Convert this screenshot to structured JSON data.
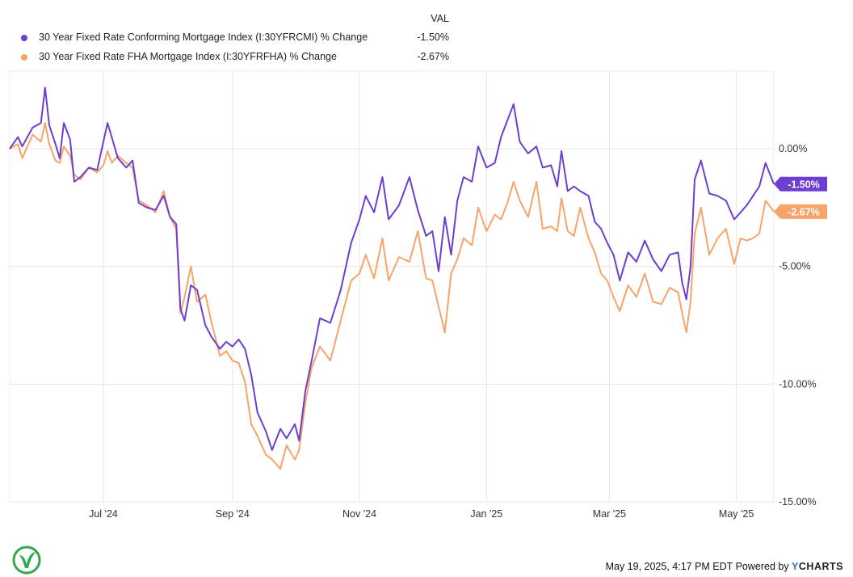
{
  "legend": {
    "header": "VAL",
    "items": [
      {
        "name": "30 Year Fixed Rate Conforming Mortgage Index (I:30YFRCMI) % Change",
        "value": "-1.50%",
        "color": "#6c3fd1"
      },
      {
        "name": "30 Year Fixed Rate FHA Mortgage Index (I:30YFRFHA) % Change",
        "value": "-2.67%",
        "color": "#f7a46a"
      }
    ]
  },
  "footer": {
    "timestamp": "May 19, 2025, 4:17 PM EDT",
    "powered_by": "Powered by",
    "brand_y": "Y",
    "brand_rest": "CHARTS"
  },
  "chart_data": {
    "type": "line",
    "x_start": "2024-05-17",
    "x_end": "2025-05-19",
    "x_tick_labels": [
      "Jul '24",
      "Sep '24",
      "Nov '24",
      "Jan '25",
      "Mar '25",
      "May '25"
    ],
    "x_tick_dates": [
      "2024-07-01",
      "2024-09-01",
      "2024-11-01",
      "2025-01-01",
      "2025-03-01",
      "2025-05-01"
    ],
    "ylim": [
      -15,
      3.3
    ],
    "y_ticks": [
      0,
      -5,
      -10,
      -15
    ],
    "y_tick_labels": [
      "0.00%",
      "-5.00%",
      "-10.00%",
      "-15.00%"
    ],
    "grid": true,
    "series": [
      {
        "name": "30 Year Fixed Rate Conforming Mortgage Index (I:30YFRCMI) % Change",
        "color": "#6c3fd1",
        "end_label": "-1.50%",
        "points": [
          [
            "2024-05-17",
            0.0
          ],
          [
            "2024-05-21",
            0.5
          ],
          [
            "2024-05-23",
            0.1
          ],
          [
            "2024-05-28",
            0.9
          ],
          [
            "2024-06-01",
            1.1
          ],
          [
            "2024-06-03",
            2.6
          ],
          [
            "2024-06-05",
            1.0
          ],
          [
            "2024-06-08",
            0.2
          ],
          [
            "2024-06-10",
            -0.4
          ],
          [
            "2024-06-12",
            1.1
          ],
          [
            "2024-06-15",
            0.4
          ],
          [
            "2024-06-17",
            -1.4
          ],
          [
            "2024-06-20",
            -1.2
          ],
          [
            "2024-06-24",
            -0.8
          ],
          [
            "2024-06-28",
            -0.9
          ],
          [
            "2024-07-01",
            0.3
          ],
          [
            "2024-07-03",
            1.1
          ],
          [
            "2024-07-05",
            0.5
          ],
          [
            "2024-07-08",
            -0.4
          ],
          [
            "2024-07-12",
            -0.8
          ],
          [
            "2024-07-15",
            -0.5
          ],
          [
            "2024-07-18",
            -2.3
          ],
          [
            "2024-07-22",
            -2.5
          ],
          [
            "2024-07-26",
            -2.6
          ],
          [
            "2024-07-30",
            -2.0
          ],
          [
            "2024-08-02",
            -2.9
          ],
          [
            "2024-08-05",
            -3.2
          ],
          [
            "2024-08-07",
            -6.8
          ],
          [
            "2024-08-09",
            -7.3
          ],
          [
            "2024-08-12",
            -5.8
          ],
          [
            "2024-08-15",
            -6.0
          ],
          [
            "2024-08-19",
            -7.5
          ],
          [
            "2024-08-22",
            -8.0
          ],
          [
            "2024-08-26",
            -8.5
          ],
          [
            "2024-08-29",
            -8.2
          ],
          [
            "2024-09-01",
            -8.4
          ],
          [
            "2024-09-04",
            -8.1
          ],
          [
            "2024-09-07",
            -8.5
          ],
          [
            "2024-09-10",
            -9.6
          ],
          [
            "2024-09-13",
            -11.2
          ],
          [
            "2024-09-17",
            -12.0
          ],
          [
            "2024-09-20",
            -12.8
          ],
          [
            "2024-09-24",
            -11.9
          ],
          [
            "2024-09-27",
            -12.3
          ],
          [
            "2024-10-01",
            -11.7
          ],
          [
            "2024-10-03",
            -12.4
          ],
          [
            "2024-10-06",
            -10.3
          ],
          [
            "2024-10-09",
            -9.0
          ],
          [
            "2024-10-13",
            -7.2
          ],
          [
            "2024-10-18",
            -7.4
          ],
          [
            "2024-10-23",
            -6.0
          ],
          [
            "2024-10-28",
            -4.0
          ],
          [
            "2024-11-01",
            -3.0
          ],
          [
            "2024-11-04",
            -2.0
          ],
          [
            "2024-11-08",
            -2.7
          ],
          [
            "2024-11-12",
            -1.2
          ],
          [
            "2024-11-15",
            -3.0
          ],
          [
            "2024-11-20",
            -2.4
          ],
          [
            "2024-11-25",
            -1.2
          ],
          [
            "2024-11-29",
            -2.6
          ],
          [
            "2024-12-03",
            -3.7
          ],
          [
            "2024-12-06",
            -3.5
          ],
          [
            "2024-12-09",
            -5.2
          ],
          [
            "2024-12-12",
            -2.9
          ],
          [
            "2024-12-15",
            -4.5
          ],
          [
            "2024-12-18",
            -2.2
          ],
          [
            "2024-12-21",
            -1.2
          ],
          [
            "2024-12-25",
            -1.4
          ],
          [
            "2024-12-28",
            0.1
          ],
          [
            "2025-01-01",
            -0.8
          ],
          [
            "2025-01-05",
            -0.6
          ],
          [
            "2025-01-08",
            0.5
          ],
          [
            "2025-01-11",
            1.2
          ],
          [
            "2025-01-14",
            1.9
          ],
          [
            "2025-01-17",
            0.3
          ],
          [
            "2025-01-21",
            -0.2
          ],
          [
            "2025-01-25",
            0.1
          ],
          [
            "2025-01-28",
            -0.8
          ],
          [
            "2025-02-01",
            -0.7
          ],
          [
            "2025-02-04",
            -1.6
          ],
          [
            "2025-02-06",
            -0.1
          ],
          [
            "2025-02-09",
            -1.8
          ],
          [
            "2025-02-12",
            -1.6
          ],
          [
            "2025-02-15",
            -1.8
          ],
          [
            "2025-02-19",
            -2.0
          ],
          [
            "2025-02-22",
            -3.1
          ],
          [
            "2025-02-25",
            -3.4
          ],
          [
            "2025-02-28",
            -4.0
          ],
          [
            "2025-03-03",
            -4.5
          ],
          [
            "2025-03-06",
            -5.6
          ],
          [
            "2025-03-10",
            -4.4
          ],
          [
            "2025-03-14",
            -4.8
          ],
          [
            "2025-03-18",
            -3.9
          ],
          [
            "2025-03-22",
            -4.7
          ],
          [
            "2025-03-26",
            -5.2
          ],
          [
            "2025-03-30",
            -4.5
          ],
          [
            "2025-04-03",
            -4.4
          ],
          [
            "2025-04-05",
            -5.7
          ],
          [
            "2025-04-07",
            -6.4
          ],
          [
            "2025-04-09",
            -5.0
          ],
          [
            "2025-04-11",
            -1.3
          ],
          [
            "2025-04-14",
            -0.5
          ],
          [
            "2025-04-18",
            -1.9
          ],
          [
            "2025-04-22",
            -2.0
          ],
          [
            "2025-04-26",
            -2.2
          ],
          [
            "2025-04-30",
            -3.0
          ],
          [
            "2025-05-03",
            -2.7
          ],
          [
            "2025-05-06",
            -2.4
          ],
          [
            "2025-05-09",
            -2.0
          ],
          [
            "2025-05-12",
            -1.6
          ],
          [
            "2025-05-15",
            -0.6
          ],
          [
            "2025-05-19",
            -1.5
          ]
        ]
      },
      {
        "name": "30 Year Fixed Rate FHA Mortgage Index (I:30YFRFHA) % Change",
        "color": "#f7a46a",
        "end_label": "-2.67%",
        "points": [
          [
            "2024-05-17",
            0.0
          ],
          [
            "2024-05-21",
            0.2
          ],
          [
            "2024-05-23",
            -0.4
          ],
          [
            "2024-05-28",
            0.6
          ],
          [
            "2024-06-01",
            0.3
          ],
          [
            "2024-06-03",
            1.1
          ],
          [
            "2024-06-05",
            0.2
          ],
          [
            "2024-06-08",
            -0.5
          ],
          [
            "2024-06-10",
            -0.6
          ],
          [
            "2024-06-12",
            0.1
          ],
          [
            "2024-06-15",
            -0.3
          ],
          [
            "2024-06-17",
            -1.1
          ],
          [
            "2024-06-20",
            -1.3
          ],
          [
            "2024-06-24",
            -0.8
          ],
          [
            "2024-06-28",
            -1.0
          ],
          [
            "2024-07-01",
            -0.7
          ],
          [
            "2024-07-03",
            -0.1
          ],
          [
            "2024-07-05",
            -0.6
          ],
          [
            "2024-07-08",
            -0.3
          ],
          [
            "2024-07-12",
            -0.6
          ],
          [
            "2024-07-15",
            -0.8
          ],
          [
            "2024-07-18",
            -2.2
          ],
          [
            "2024-07-22",
            -2.4
          ],
          [
            "2024-07-26",
            -2.7
          ],
          [
            "2024-07-30",
            -1.8
          ],
          [
            "2024-08-02",
            -2.9
          ],
          [
            "2024-08-05",
            -3.4
          ],
          [
            "2024-08-07",
            -7.0
          ],
          [
            "2024-08-09",
            -6.3
          ],
          [
            "2024-08-12",
            -5.0
          ],
          [
            "2024-08-15",
            -6.5
          ],
          [
            "2024-08-19",
            -6.2
          ],
          [
            "2024-08-22",
            -7.4
          ],
          [
            "2024-08-26",
            -8.8
          ],
          [
            "2024-08-29",
            -8.6
          ],
          [
            "2024-09-01",
            -9.0
          ],
          [
            "2024-09-04",
            -9.1
          ],
          [
            "2024-09-07",
            -9.9
          ],
          [
            "2024-09-10",
            -11.7
          ],
          [
            "2024-09-13",
            -12.2
          ],
          [
            "2024-09-17",
            -13.0
          ],
          [
            "2024-09-20",
            -13.2
          ],
          [
            "2024-09-24",
            -13.6
          ],
          [
            "2024-09-27",
            -12.6
          ],
          [
            "2024-10-01",
            -13.2
          ],
          [
            "2024-10-03",
            -12.8
          ],
          [
            "2024-10-06",
            -10.8
          ],
          [
            "2024-10-09",
            -9.3
          ],
          [
            "2024-10-13",
            -8.4
          ],
          [
            "2024-10-18",
            -9.0
          ],
          [
            "2024-10-23",
            -7.3
          ],
          [
            "2024-10-28",
            -5.6
          ],
          [
            "2024-11-01",
            -5.3
          ],
          [
            "2024-11-04",
            -4.5
          ],
          [
            "2024-11-08",
            -5.5
          ],
          [
            "2024-11-12",
            -3.8
          ],
          [
            "2024-11-15",
            -5.6
          ],
          [
            "2024-11-20",
            -4.6
          ],
          [
            "2024-11-25",
            -4.8
          ],
          [
            "2024-11-29",
            -3.5
          ],
          [
            "2024-12-03",
            -5.5
          ],
          [
            "2024-12-06",
            -5.6
          ],
          [
            "2024-12-09",
            -6.7
          ],
          [
            "2024-12-12",
            -7.8
          ],
          [
            "2024-12-15",
            -5.3
          ],
          [
            "2024-12-18",
            -4.7
          ],
          [
            "2024-12-21",
            -3.8
          ],
          [
            "2024-12-25",
            -4.1
          ],
          [
            "2024-12-28",
            -2.5
          ],
          [
            "2025-01-01",
            -3.5
          ],
          [
            "2025-01-05",
            -2.8
          ],
          [
            "2025-01-08",
            -3.0
          ],
          [
            "2025-01-11",
            -2.3
          ],
          [
            "2025-01-14",
            -1.4
          ],
          [
            "2025-01-17",
            -2.2
          ],
          [
            "2025-01-21",
            -2.9
          ],
          [
            "2025-01-25",
            -1.4
          ],
          [
            "2025-01-28",
            -3.4
          ],
          [
            "2025-02-01",
            -3.3
          ],
          [
            "2025-02-04",
            -3.5
          ],
          [
            "2025-02-06",
            -2.1
          ],
          [
            "2025-02-09",
            -3.5
          ],
          [
            "2025-02-12",
            -3.7
          ],
          [
            "2025-02-15",
            -2.5
          ],
          [
            "2025-02-19",
            -3.8
          ],
          [
            "2025-02-22",
            -4.4
          ],
          [
            "2025-02-25",
            -5.3
          ],
          [
            "2025-02-28",
            -5.6
          ],
          [
            "2025-03-03",
            -6.3
          ],
          [
            "2025-03-06",
            -6.9
          ],
          [
            "2025-03-10",
            -5.8
          ],
          [
            "2025-03-14",
            -6.3
          ],
          [
            "2025-03-18",
            -5.3
          ],
          [
            "2025-03-22",
            -6.5
          ],
          [
            "2025-03-26",
            -6.6
          ],
          [
            "2025-03-30",
            -5.9
          ],
          [
            "2025-04-03",
            -6.1
          ],
          [
            "2025-04-05",
            -7.0
          ],
          [
            "2025-04-07",
            -7.8
          ],
          [
            "2025-04-09",
            -6.5
          ],
          [
            "2025-04-11",
            -3.6
          ],
          [
            "2025-04-14",
            -2.5
          ],
          [
            "2025-04-18",
            -4.5
          ],
          [
            "2025-04-22",
            -3.8
          ],
          [
            "2025-04-26",
            -3.4
          ],
          [
            "2025-04-30",
            -4.9
          ],
          [
            "2025-05-03",
            -3.8
          ],
          [
            "2025-05-06",
            -3.9
          ],
          [
            "2025-05-09",
            -3.8
          ],
          [
            "2025-05-12",
            -3.6
          ],
          [
            "2025-05-15",
            -2.2
          ],
          [
            "2025-05-19",
            -2.67
          ]
        ]
      }
    ]
  }
}
